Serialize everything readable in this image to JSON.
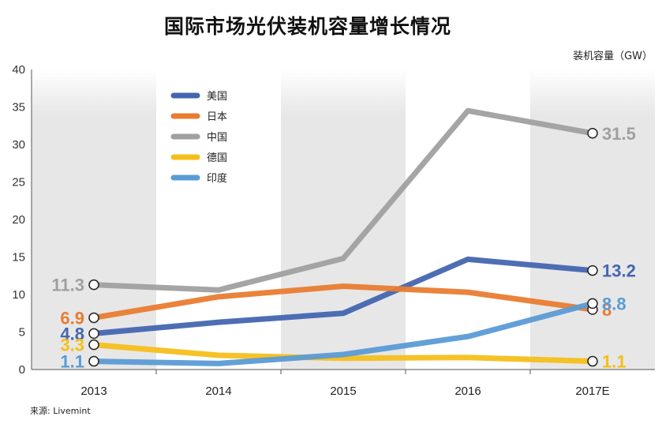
{
  "title": "国际市场光伏装机容量增长情况",
  "unit_label": "装机容量（GW）",
  "source": "来源: Livemint",
  "chart_data": {
    "type": "line",
    "title": "国际市场光伏装机容量增长情况",
    "ylabel": "装机容量（GW）",
    "xlabel": "",
    "categories": [
      "2013",
      "2014",
      "2015",
      "2016",
      "2017E"
    ],
    "yticks": [
      "0",
      "5",
      "10",
      "15",
      "20",
      "25",
      "30",
      "35",
      "40"
    ],
    "ylim": [
      0,
      40
    ],
    "grid": "vertical bands",
    "legend_position": "top-left",
    "series": [
      {
        "name": "美国",
        "color": "#4466b0",
        "values": [
          4.8,
          6.3,
          7.5,
          14.7,
          13.2
        ],
        "start_label": "4.8",
        "end_label": "13.2"
      },
      {
        "name": "日本",
        "color": "#e97c30",
        "values": [
          6.9,
          9.7,
          11.1,
          10.3,
          8
        ],
        "start_label": "6.9",
        "end_label": "8"
      },
      {
        "name": "中国",
        "color": "#a0a0a0",
        "values": [
          11.3,
          10.6,
          14.8,
          34.5,
          31.5
        ],
        "start_label": "11.3",
        "end_label": "31.5"
      },
      {
        "name": "德国",
        "color": "#f5bf1a",
        "values": [
          3.3,
          1.9,
          1.5,
          1.6,
          1.1
        ],
        "start_label": "3.3",
        "end_label": "1.1"
      },
      {
        "name": "印度",
        "color": "#5b9bd5",
        "values": [
          1.1,
          0.8,
          2.0,
          4.4,
          8.8
        ],
        "start_label": "1.1",
        "end_label": "8.8"
      }
    ]
  }
}
